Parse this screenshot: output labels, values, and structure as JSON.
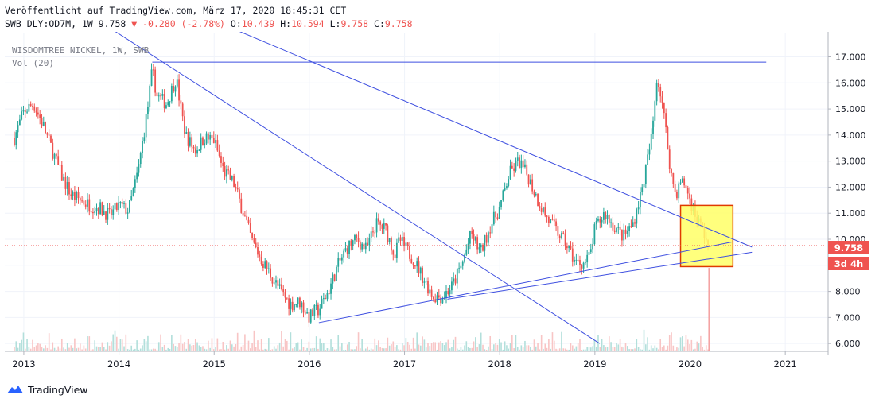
{
  "header": {
    "published": "Veröffentlicht auf TradingView.com, März 17, 2020 18:45:31 CET",
    "symbol_line": "SWB_DLY:OD7M, 1W 9.758",
    "change": "▼ -0.280 (-2.78%)",
    "o_label": "O:",
    "o_val": "10.439",
    "h_label": "H:",
    "h_val": "10.594",
    "l_label": "L:",
    "l_val": "9.758",
    "c_label": "C:",
    "c_val": "9.758"
  },
  "legend": {
    "title": "WISDOMTREE NICKEL, 1W, SWB",
    "volume": "Vol (20)"
  },
  "price_badge": {
    "label": "9.758",
    "color": "#ef5350"
  },
  "countdown_badge": {
    "label": "3d 4h",
    "color": "#ef5350"
  },
  "footer": {
    "brand": "TradingView",
    "icon": "tradingview-logo-icon"
  },
  "colors": {
    "up": "#26a69a",
    "down": "#ef5350",
    "trendline": "#3e4fe0",
    "highlight_fill": "#ffff66",
    "highlight_border": "#e03a00"
  },
  "chart_data": {
    "type": "candlestick",
    "interval": "1W",
    "ylim": [
      5.7,
      17.9
    ],
    "y_ticks": [
      "6.000",
      "7.000",
      "8.000",
      "9.000",
      "10.000",
      "11.000",
      "12.000",
      "13.000",
      "14.000",
      "15.000",
      "16.000",
      "17.000"
    ],
    "x_ticks": [
      "2013",
      "2014",
      "2015",
      "2016",
      "2017",
      "2018",
      "2019",
      "2020",
      "2021"
    ],
    "last_close": 9.758,
    "series": [
      {
        "name": "close",
        "x": [
          2012.9,
          2013.0,
          2013.1,
          2013.2,
          2013.3,
          2013.4,
          2013.5,
          2013.6,
          2013.7,
          2013.8,
          2013.9,
          2014.0,
          2014.1,
          2014.2,
          2014.3,
          2014.35,
          2014.4,
          2014.5,
          2014.6,
          2014.65,
          2014.7,
          2014.8,
          2014.9,
          2015.0,
          2015.1,
          2015.2,
          2015.3,
          2015.4,
          2015.5,
          2015.6,
          2015.7,
          2015.8,
          2015.9,
          2016.0,
          2016.05,
          2016.1,
          2016.2,
          2016.3,
          2016.4,
          2016.5,
          2016.6,
          2016.7,
          2016.8,
          2016.9,
          2016.95,
          2017.0,
          2017.1,
          2017.2,
          2017.3,
          2017.4,
          2017.45,
          2017.5,
          2017.6,
          2017.7,
          2017.8,
          2017.9,
          2018.0,
          2018.1,
          2018.2,
          2018.3,
          2018.4,
          2018.5,
          2018.6,
          2018.7,
          2018.8,
          2018.9,
          2018.95,
          2019.0,
          2019.1,
          2019.2,
          2019.3,
          2019.4,
          2019.5,
          2019.6,
          2019.65,
          2019.7,
          2019.75,
          2019.8,
          2019.85,
          2019.9,
          2019.95,
          2020.0,
          2020.05,
          2020.1,
          2020.15,
          2020.2
        ],
        "y": [
          13.9,
          14.9,
          15.2,
          14.4,
          13.4,
          12.4,
          11.7,
          11.5,
          11.3,
          11.2,
          10.9,
          11.3,
          11.1,
          12.6,
          15.0,
          16.5,
          15.5,
          15.2,
          16.2,
          15.0,
          14.0,
          13.4,
          13.9,
          13.8,
          12.6,
          12.2,
          11.1,
          9.9,
          9.2,
          8.6,
          8.0,
          7.5,
          7.6,
          7.0,
          7.2,
          7.3,
          8.0,
          9.0,
          9.7,
          10.0,
          9.6,
          10.6,
          10.4,
          9.4,
          10.0,
          9.7,
          9.2,
          8.5,
          7.8,
          7.8,
          8.0,
          8.2,
          9.0,
          10.2,
          9.5,
          10.5,
          11.2,
          12.5,
          13.0,
          12.4,
          11.5,
          10.8,
          10.3,
          9.8,
          9.1,
          9.1,
          9.4,
          10.4,
          11.0,
          10.5,
          10.1,
          10.6,
          12.0,
          14.0,
          16.2,
          15.5,
          14.0,
          12.5,
          11.7,
          12.2,
          12.1,
          11.5,
          11.0,
          10.6,
          10.2,
          9.758
        ]
      }
    ],
    "trendlines": [
      {
        "from": [
          2014.35,
          16.8
        ],
        "to": [
          2020.8,
          16.8
        ]
      },
      {
        "from": [
          2013.95,
          18.0
        ],
        "to": [
          2019.05,
          6.0
        ]
      },
      {
        "from": [
          2015.25,
          18.0
        ],
        "to": [
          2020.65,
          9.7
        ]
      },
      {
        "from": [
          2016.1,
          6.8
        ],
        "to": [
          2020.45,
          9.9
        ]
      },
      {
        "from": [
          2017.45,
          7.7
        ],
        "to": [
          2020.65,
          9.5
        ]
      }
    ],
    "highlight_box": {
      "x": [
        2019.9,
        2020.45
      ],
      "y": [
        8.95,
        11.3
      ]
    },
    "dotted_price_line": 9.758
  }
}
